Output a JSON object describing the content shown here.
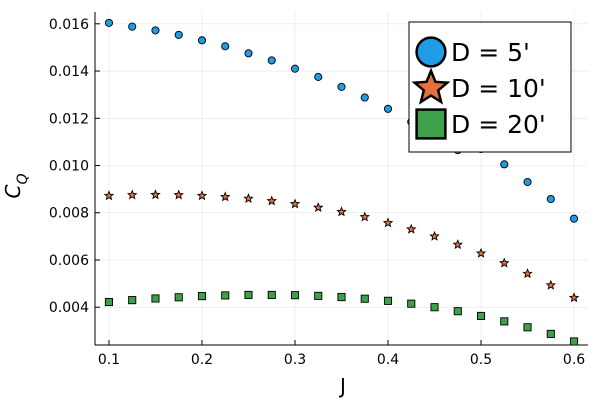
{
  "chart_data": {
    "type": "scatter",
    "title": "",
    "xlabel": "J",
    "ylabel": "C_Q",
    "xlim": [
      0.085,
      0.615
    ],
    "ylim": [
      0.0024,
      0.0165
    ],
    "xticks": [
      0.1,
      0.2,
      0.3,
      0.4,
      0.5,
      0.6
    ],
    "xtick_labels": [
      "0.1",
      "0.2",
      "0.3",
      "0.4",
      "0.5",
      "0.6"
    ],
    "yticks": [
      0.004,
      0.006,
      0.008,
      0.01,
      0.012,
      0.014,
      0.016
    ],
    "ytick_labels": [
      "0.004",
      "0.006",
      "0.008",
      "0.010",
      "0.012",
      "0.014",
      "0.016"
    ],
    "grid": true,
    "legend_position": "top-right",
    "x": [
      0.1,
      0.125,
      0.15,
      0.175,
      0.2,
      0.225,
      0.25,
      0.275,
      0.3,
      0.325,
      0.35,
      0.375,
      0.4,
      0.425,
      0.45,
      0.475,
      0.5,
      0.525,
      0.55,
      0.575,
      0.6
    ],
    "series": [
      {
        "name": "D = 5'",
        "marker": "circle",
        "color": "#1f9be8",
        "values": [
          0.01604,
          0.01588,
          0.01572,
          0.01553,
          0.0153,
          0.01505,
          0.01475,
          0.01445,
          0.0141,
          0.01375,
          0.01333,
          0.01288,
          0.0124,
          0.01185,
          0.0113,
          0.01065,
          0.0107,
          0.01005,
          0.0093,
          0.00858,
          0.00775
        ]
      },
      {
        "name": "D = 10'",
        "marker": "star",
        "color": "#e5703f",
        "values": [
          0.00872,
          0.00875,
          0.00876,
          0.00875,
          0.00872,
          0.00867,
          0.0086,
          0.0085,
          0.00837,
          0.00822,
          0.00804,
          0.00782,
          0.00757,
          0.0073,
          0.007,
          0.00665,
          0.00628,
          0.00587,
          0.00542,
          0.00493,
          0.0044
        ]
      },
      {
        "name": "D = 20'",
        "marker": "square",
        "color": "#3ea048",
        "values": [
          0.00422,
          0.0043,
          0.00437,
          0.00442,
          0.00447,
          0.0045,
          0.00452,
          0.00452,
          0.00451,
          0.00448,
          0.00443,
          0.00436,
          0.00427,
          0.00415,
          0.004,
          0.00383,
          0.00363,
          0.0034,
          0.00315,
          0.00287,
          0.00255
        ]
      }
    ]
  }
}
